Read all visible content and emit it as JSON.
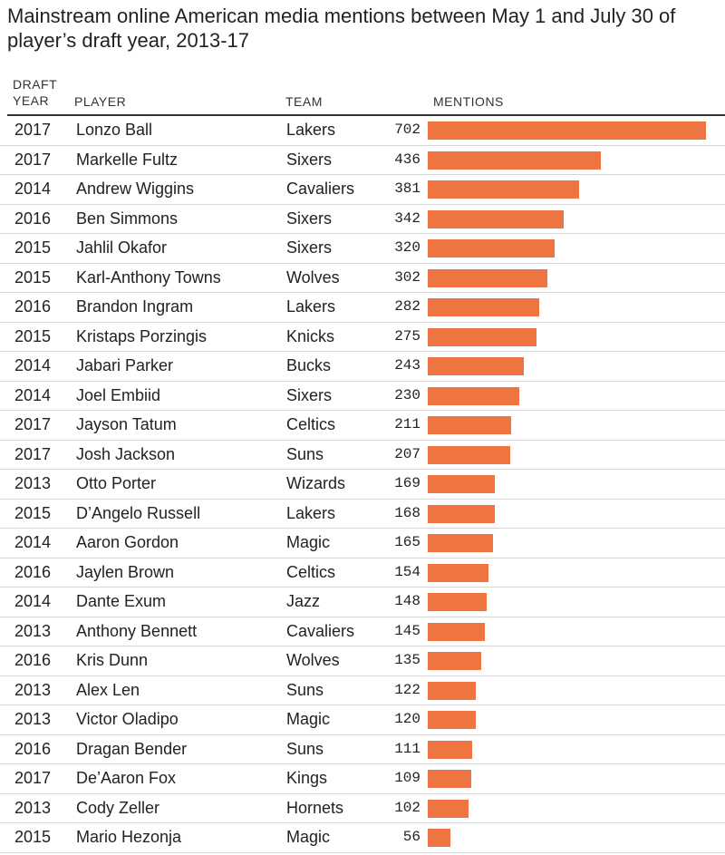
{
  "title": "Mainstream online American media mentions between May 1 and July 30 of player’s draft year, 2013-17",
  "headers": {
    "year_line1": "DRAFT",
    "year_line2": "YEAR",
    "player": "PLAYER",
    "team": "TEAM",
    "mentions": "MENTIONS"
  },
  "colors": {
    "bar": "#ee7442"
  },
  "chart_data": {
    "type": "bar",
    "orientation": "horizontal",
    "title": "Mainstream online American media mentions between May 1 and July 30 of player’s draft year, 2013-17",
    "xlabel": "MENTIONS",
    "xlim": [
      0,
      702
    ],
    "rows": [
      {
        "year": "2017",
        "player": "Lonzo Ball",
        "team": "Lakers",
        "value": 702
      },
      {
        "year": "2017",
        "player": "Markelle Fultz",
        "team": "Sixers",
        "value": 436
      },
      {
        "year": "2014",
        "player": "Andrew Wiggins",
        "team": "Cavaliers",
        "value": 381
      },
      {
        "year": "2016",
        "player": "Ben Simmons",
        "team": "Sixers",
        "value": 342
      },
      {
        "year": "2015",
        "player": "Jahlil Okafor",
        "team": "Sixers",
        "value": 320
      },
      {
        "year": "2015",
        "player": "Karl-Anthony Towns",
        "team": "Wolves",
        "value": 302
      },
      {
        "year": "2016",
        "player": "Brandon Ingram",
        "team": "Lakers",
        "value": 282
      },
      {
        "year": "2015",
        "player": "Kristaps Porzingis",
        "team": "Knicks",
        "value": 275
      },
      {
        "year": "2014",
        "player": "Jabari Parker",
        "team": "Bucks",
        "value": 243
      },
      {
        "year": "2014",
        "player": "Joel Embiid",
        "team": "Sixers",
        "value": 230
      },
      {
        "year": "2017",
        "player": "Jayson Tatum",
        "team": "Celtics",
        "value": 211
      },
      {
        "year": "2017",
        "player": "Josh Jackson",
        "team": "Suns",
        "value": 207
      },
      {
        "year": "2013",
        "player": "Otto Porter",
        "team": "Wizards",
        "value": 169
      },
      {
        "year": "2015",
        "player": "D’Angelo Russell",
        "team": "Lakers",
        "value": 168
      },
      {
        "year": "2014",
        "player": "Aaron Gordon",
        "team": "Magic",
        "value": 165
      },
      {
        "year": "2016",
        "player": "Jaylen Brown",
        "team": "Celtics",
        "value": 154
      },
      {
        "year": "2014",
        "player": "Dante Exum",
        "team": "Jazz",
        "value": 148
      },
      {
        "year": "2013",
        "player": "Anthony Bennett",
        "team": "Cavaliers",
        "value": 145
      },
      {
        "year": "2016",
        "player": "Kris Dunn",
        "team": "Wolves",
        "value": 135
      },
      {
        "year": "2013",
        "player": "Alex Len",
        "team": "Suns",
        "value": 122
      },
      {
        "year": "2013",
        "player": "Victor Oladipo",
        "team": "Magic",
        "value": 120
      },
      {
        "year": "2016",
        "player": "Dragan Bender",
        "team": "Suns",
        "value": 111
      },
      {
        "year": "2017",
        "player": "De’Aaron Fox",
        "team": "Kings",
        "value": 109
      },
      {
        "year": "2013",
        "player": "Cody Zeller",
        "team": "Hornets",
        "value": 102
      },
      {
        "year": "2015",
        "player": "Mario Hezonja",
        "team": "Magic",
        "value": 56
      }
    ]
  }
}
